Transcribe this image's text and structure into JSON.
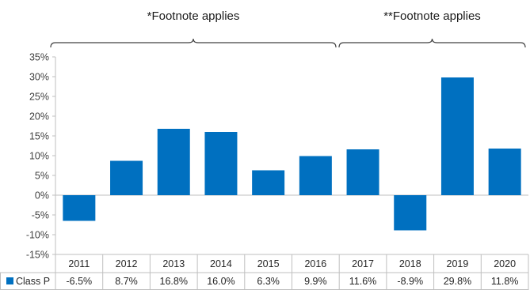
{
  "chart_data": {
    "type": "bar",
    "categories": [
      "2011",
      "2012",
      "2013",
      "2014",
      "2015",
      "2016",
      "2017",
      "2018",
      "2019",
      "2020"
    ],
    "series": [
      {
        "name": "Class P",
        "values": [
          -6.5,
          8.7,
          16.8,
          16.0,
          6.3,
          9.9,
          11.6,
          -8.9,
          29.8,
          11.8
        ],
        "labels": [
          "-6.5%",
          "8.7%",
          "16.8%",
          "16.0%",
          "6.3%",
          "9.9%",
          "11.6%",
          "-8.9%",
          "29.8%",
          "11.8%"
        ],
        "color": "#0070C0"
      }
    ],
    "ylim": [
      -15,
      35
    ],
    "yticks": [
      35,
      30,
      25,
      20,
      15,
      10,
      5,
      0,
      -5,
      -10,
      -15
    ],
    "ytick_labels": [
      "35%",
      "30%",
      "25%",
      "20%",
      "15%",
      "10%",
      "5%",
      "0%",
      "-5%",
      "-10%",
      "-15%"
    ],
    "data_table": true,
    "grid": false,
    "annotations": [
      {
        "text": "*Footnote applies",
        "from": "2011",
        "to": "2016"
      },
      {
        "text": "**Footnote applies",
        "from": "2017",
        "to": "2020"
      }
    ]
  }
}
